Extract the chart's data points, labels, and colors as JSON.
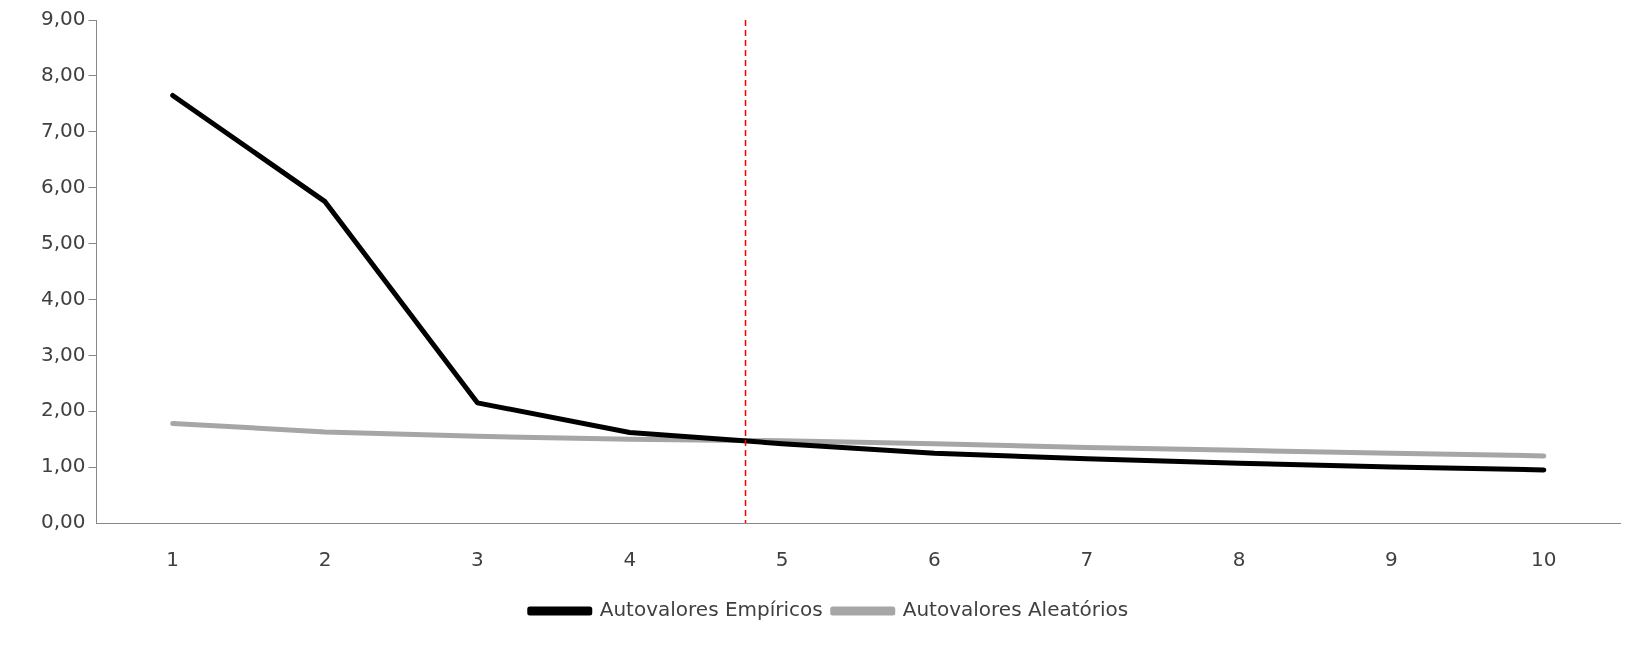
{
  "chart_data": {
    "type": "line",
    "x": [
      1,
      2,
      3,
      4,
      5,
      6,
      7,
      8,
      9,
      10
    ],
    "xlim": [
      0.5,
      10.5
    ],
    "xticks": [
      1,
      2,
      3,
      4,
      5,
      6,
      7,
      8,
      9,
      10
    ],
    "ylim": [
      0,
      9
    ],
    "yticks": [
      {
        "value": 0,
        "label": "0,00"
      },
      {
        "value": 1,
        "label": "1,00"
      },
      {
        "value": 2,
        "label": "2,00"
      },
      {
        "value": 3,
        "label": "3,00"
      },
      {
        "value": 4,
        "label": "4,00"
      },
      {
        "value": 5,
        "label": "5,00"
      },
      {
        "value": 6,
        "label": "6,00"
      },
      {
        "value": 7,
        "label": "7,00"
      },
      {
        "value": 8,
        "label": "8,00"
      },
      {
        "value": 9,
        "label": "9,00"
      }
    ],
    "series": [
      {
        "name": "Autovalores Empíricos",
        "color": "#000000",
        "values": [
          7.65,
          5.75,
          2.15,
          1.62,
          1.42,
          1.25,
          1.15,
          1.07,
          1.0,
          0.95
        ]
      },
      {
        "name": "Autovalores Aleatórios",
        "color": "#a6a6a6",
        "values": [
          1.78,
          1.63,
          1.55,
          1.5,
          1.47,
          1.42,
          1.35,
          1.3,
          1.25,
          1.2
        ]
      }
    ],
    "ref_lines": [
      {
        "axis": "x",
        "value": 4.76,
        "color": "#ff0000",
        "line_style": "dashed"
      }
    ],
    "grid": false,
    "legend": "bottom",
    "marker": "none",
    "line_style": "solid"
  }
}
